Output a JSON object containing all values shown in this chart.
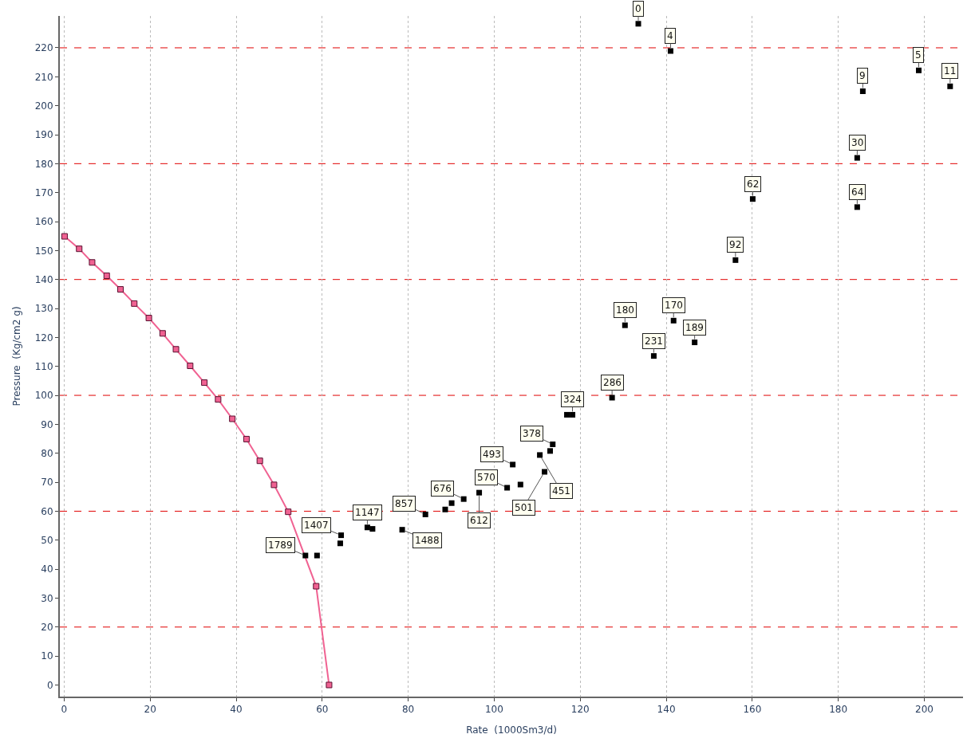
{
  "chart_data": {
    "type": "scatter",
    "xlabel": "Rate  (1000Sm3/d)",
    "ylabel": "Pressure  (Kg/cm2 g)",
    "xlim": [
      -1,
      209
    ],
    "ylim": [
      -4,
      231
    ],
    "xticks": [
      0,
      20,
      40,
      60,
      80,
      100,
      120,
      140,
      160,
      180,
      200
    ],
    "yticks": [
      0,
      10,
      20,
      30,
      40,
      50,
      60,
      70,
      80,
      90,
      100,
      110,
      120,
      130,
      140,
      150,
      160,
      170,
      180,
      190,
      200,
      210,
      220
    ],
    "grid": "x",
    "ref_lines": [
      {
        "axis": "y",
        "value": 20,
        "color": "#e00000",
        "line_style": "dashed"
      },
      {
        "axis": "y",
        "value": 60,
        "color": "#e00000",
        "line_style": "dashed"
      },
      {
        "axis": "y",
        "value": 100,
        "color": "#e00000",
        "line_style": "dashed"
      },
      {
        "axis": "y",
        "value": 140,
        "color": "#e00000",
        "line_style": "dashed"
      },
      {
        "axis": "y",
        "value": 180,
        "color": "#e00000",
        "line_style": "dashed"
      },
      {
        "axis": "y",
        "value": 220,
        "color": "#e00000",
        "line_style": "dashed"
      }
    ],
    "series": [
      {
        "type": "line",
        "color": "#f06292",
        "marker": "square",
        "line_style": "solid",
        "x": [
          0.1,
          3.5,
          6.5,
          9.9,
          13.1,
          16.3,
          19.7,
          22.9,
          26.0,
          29.3,
          32.6,
          35.8,
          39.1,
          42.4,
          45.5,
          48.8,
          52.1,
          58.6,
          61.6
        ],
        "values": [
          154.9,
          150.6,
          145.9,
          141.3,
          136.6,
          131.7,
          126.7,
          121.4,
          115.9,
          110.2,
          104.4,
          98.6,
          91.9,
          84.9,
          77.4,
          69.1,
          59.8,
          34.1,
          0
        ]
      },
      {
        "color": "#000000",
        "marker": "square",
        "x": [
          133.5,
          141.0,
          198.7,
          206.0,
          185.7,
          184.4,
          184.4,
          160.1,
          156.1,
          130.4,
          141.7,
          146.6,
          137.1,
          127.4,
          118.2,
          116.9,
          113.6,
          113.0,
          110.6,
          104.3,
          111.7,
          106.1,
          103.0,
          96.5,
          92.9,
          90.1,
          88.6,
          84.0,
          78.6,
          71.7,
          70.5,
          64.4,
          64.2,
          58.8,
          56.1
        ],
        "values": [
          228.3,
          218.9,
          212.2,
          206.7,
          205,
          182,
          165,
          167.8,
          146.7,
          124.2,
          125.8,
          118.3,
          113.6,
          99.2,
          93.3,
          93.3,
          83.1,
          80.8,
          79.4,
          76.1,
          73.6,
          69.2,
          68.1,
          66.4,
          64.2,
          62.8,
          60.6,
          58.9,
          53.6,
          53.9,
          54.4,
          51.7,
          48.9,
          44.7,
          44.7
        ]
      }
    ],
    "annotations": [
      {
        "text": "0",
        "x": 133.5,
        "y": 228.3
      },
      {
        "text": "4",
        "x": 141.0,
        "y": 218.9
      },
      {
        "text": "5",
        "x": 198.7,
        "y": 212.2
      },
      {
        "text": "11",
        "x": 206.0,
        "y": 206.7
      },
      {
        "text": "9",
        "x": 185.7,
        "y": 205
      },
      {
        "text": "30",
        "x": 184.4,
        "y": 182
      },
      {
        "text": "64",
        "x": 184.4,
        "y": 165
      },
      {
        "text": "62",
        "x": 160.1,
        "y": 167.8
      },
      {
        "text": "92",
        "x": 156.1,
        "y": 146.7
      },
      {
        "text": "180",
        "x": 130.4,
        "y": 124.2
      },
      {
        "text": "170",
        "x": 141.7,
        "y": 125.8
      },
      {
        "text": "189",
        "x": 146.6,
        "y": 118.3
      },
      {
        "text": "231",
        "x": 137.1,
        "y": 113.6
      },
      {
        "text": "286",
        "x": 127.4,
        "y": 99.2
      },
      {
        "text": "324",
        "x": 118.2,
        "y": 93.3
      },
      {
        "text": "378",
        "x": 113.6,
        "y": 83.1
      },
      {
        "text": "451",
        "x": 110.6,
        "y": 79.4
      },
      {
        "text": "493",
        "x": 104.3,
        "y": 76.1
      },
      {
        "text": "501",
        "x": 111.7,
        "y": 73.6
      },
      {
        "text": "570",
        "x": 103.0,
        "y": 68.1
      },
      {
        "text": "612",
        "x": 96.5,
        "y": 66.4
      },
      {
        "text": "676",
        "x": 92.9,
        "y": 64.2
      },
      {
        "text": "857",
        "x": 84.0,
        "y": 58.9
      },
      {
        "text": "1488",
        "x": 78.6,
        "y": 53.6
      },
      {
        "text": "1147",
        "x": 70.5,
        "y": 54.4
      },
      {
        "text": "1407",
        "x": 64.4,
        "y": 51.7
      },
      {
        "text": "1789",
        "x": 56.1,
        "y": 44.7
      }
    ]
  }
}
